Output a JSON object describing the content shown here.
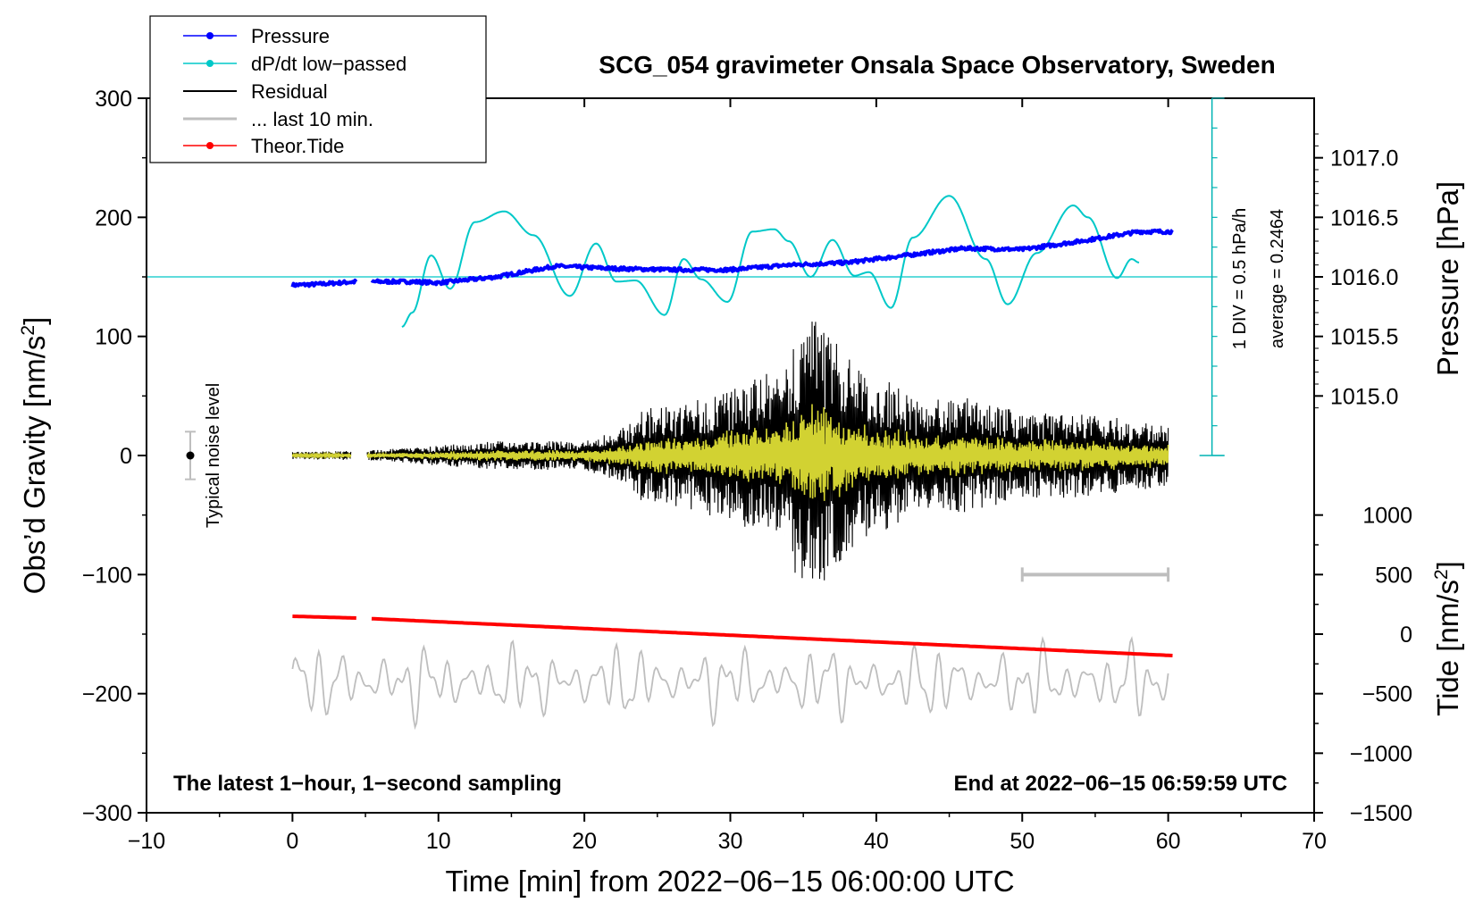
{
  "chart_data": {
    "type": "line",
    "title": "SCG_054 gravimeter Onsala Space Observatory, Sweden",
    "xlabel": "Time [min] from 2022−06−15 06:00:00 UTC",
    "ylabel": "Obs’d Gravity [nm/s²]",
    "ylabel_main": "Obs’d Gravity [nm/s",
    "ylabel_sup": "2",
    "ylabel_close": "]",
    "xlim": [
      -10,
      70
    ],
    "ylim": [
      -300,
      300
    ],
    "x_ticks": [
      -10,
      0,
      10,
      20,
      30,
      40,
      50,
      60,
      70
    ],
    "x_tick_labels": [
      "−10",
      "0",
      "10",
      "20",
      "30",
      "40",
      "50",
      "60",
      "70"
    ],
    "y_ticks": [
      -300,
      -200,
      -100,
      0,
      100,
      200,
      300
    ],
    "y_tick_labels": [
      "−300",
      "−200",
      "−100",
      "0",
      "100",
      "200",
      "300"
    ],
    "right_pressure_axis": {
      "label": "Pressure [hPa]",
      "ticks": [
        1015.0,
        1015.5,
        1016.0,
        1016.5,
        1017.0
      ],
      "tick_labels": [
        "1015.0",
        "1015.5",
        "1016.0",
        "1016.5",
        "1017.0"
      ],
      "ref": {
        "pressure": 1016.0,
        "gravity": 150,
        "scale_per_hpa": 100
      }
    },
    "right_tide_axis": {
      "label_main": "Tide [nm/s",
      "label_sup": "2",
      "label_close": "]",
      "ticks": [
        -1500,
        -1000,
        -500,
        0,
        500,
        1000
      ],
      "tick_labels": [
        "−1500",
        "−1000",
        "−500",
        "0",
        "500",
        "1000"
      ],
      "ref": {
        "tide": 0,
        "gravity": -150,
        "scale_per_unit": 0.1
      }
    },
    "legend": {
      "position": "top-left",
      "entries": [
        {
          "label": "Pressure",
          "color": "#0000ff",
          "marker": true
        },
        {
          "label": "dP/dt low−passed",
          "color": "#00c8c8",
          "marker": true
        },
        {
          "label": "Residual",
          "color": "#000000",
          "marker": false
        },
        {
          "label": "... last 10 min.",
          "color": "#bebebe",
          "marker": false
        },
        {
          "label": "Theor.Tide",
          "color": "#ff0000",
          "marker": true
        }
      ]
    },
    "series": [
      {
        "name": "Pressure",
        "color": "#0000ff",
        "unit": "hPa",
        "gaps": [
          [
            4.4,
            5.4
          ]
        ],
        "x": [
          0,
          2,
          4.4,
          5.4,
          8,
          10,
          14,
          18,
          22,
          26,
          30,
          34,
          38,
          42,
          46,
          50,
          54,
          58,
          60.3
        ],
        "values": [
          1015.93,
          1015.94,
          1015.96,
          1015.96,
          1015.96,
          1015.95,
          1016.0,
          1016.09,
          1016.07,
          1016.06,
          1016.06,
          1016.1,
          1016.12,
          1016.18,
          1016.24,
          1016.23,
          1016.3,
          1016.38,
          1016.38
        ]
      },
      {
        "name": "dP/dt low−passed",
        "color": "#00c8c8",
        "unit": "nm/s² plot scale",
        "baseline": 150,
        "x": [
          7.5,
          8.2,
          9.5,
          10.8,
          12.5,
          14.5,
          16.5,
          19,
          20.8,
          22.2,
          23.5,
          25.5,
          26.8,
          28,
          29.8,
          31.5,
          33,
          34,
          35.5,
          37,
          38.5,
          39.5,
          41,
          42.5,
          45,
          47.5,
          49,
          51,
          53.5,
          54.5,
          56.5,
          57.5,
          58
        ],
        "values": [
          108,
          120,
          168,
          140,
          196,
          205,
          185,
          134,
          178,
          146,
          147,
          118,
          165,
          148,
          129,
          188,
          190,
          180,
          150,
          181,
          151,
          154,
          124,
          183,
          218,
          165,
          127,
          170,
          210,
          200,
          149,
          165,
          162
        ]
      },
      {
        "name": "Residual",
        "color": "#000000",
        "unit": "nm/s²",
        "x": [
          0,
          4.4,
          5.1,
          14,
          20,
          23,
          24,
          26,
          28,
          31,
          33,
          35.5,
          37,
          39,
          41,
          43,
          46,
          50,
          55,
          60
        ],
        "envelope": [
          3,
          4,
          4,
          12,
          12,
          25,
          40,
          42,
          48,
          60,
          72,
          118,
          100,
          70,
          62,
          45,
          50,
          36,
          35,
          25
        ]
      },
      {
        "name": "... last 10 min.",
        "color": "#bebebe",
        "unit": "nm/s²",
        "baseline": -190,
        "x_range": [
          0,
          60
        ],
        "amplitude": 26
      },
      {
        "name": "Theor.Tide",
        "color": "#ff0000",
        "unit": "nm/s² tide",
        "gaps": [
          [
            4.4,
            5.4
          ]
        ],
        "x": [
          0,
          4.4,
          5.4,
          60.3
        ],
        "values": [
          150,
          135,
          130,
          -180
        ]
      }
    ],
    "yellow_filtered": {
      "color": "#d2d232",
      "ratio": 0.4
    },
    "noise_level": {
      "label": "Typical noise level",
      "x": -7,
      "center": 0,
      "half_range": 20
    },
    "scale_bar": {
      "x_start": 50,
      "x_end": 60,
      "y": -100,
      "color": "#bebebe"
    },
    "dpdt_scale": {
      "label": "1 DIV = 0.5 hPa/h",
      "average_label": "average = 0.2464",
      "x": 63,
      "y_min": 0,
      "y_max": 300,
      "color": "#00b4b4"
    },
    "footer_left": "The latest 1−hour, 1−second sampling",
    "footer_right": "End at 2022−06−15 06:59:59 UTC"
  }
}
